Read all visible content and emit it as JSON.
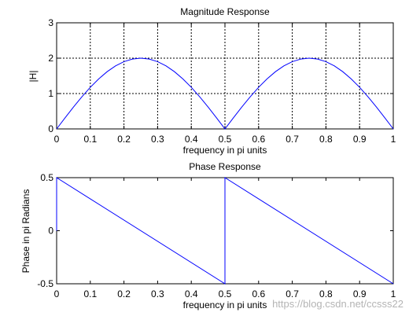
{
  "colors": {
    "line": "#0000ff",
    "axes": "#000000",
    "grid": "#000000",
    "background": "#ffffff",
    "watermark": "#b4b4b4"
  },
  "watermark": "https://blog.csdn.net/ccsss22",
  "chart_data": [
    {
      "type": "line",
      "title": "Magnitude Response",
      "xlabel": "frequency in pi units",
      "ylabel": "|H|",
      "xlim": [
        0,
        1
      ],
      "ylim": [
        0,
        3
      ],
      "grid": true,
      "x_ticks": [
        0,
        0.1,
        0.2,
        0.3,
        0.4,
        0.5,
        0.6,
        0.7,
        0.8,
        0.9,
        1
      ],
      "x_tick_labels": [
        "0",
        "0.1",
        "0.2",
        "0.3",
        "0.4",
        "0.5",
        "0.6",
        "0.7",
        "0.8",
        "0.9",
        "1"
      ],
      "y_ticks": [
        0,
        1,
        2,
        3
      ],
      "y_tick_labels": [
        "0",
        "1",
        "2",
        "3"
      ],
      "series": [
        {
          "x": [
            0,
            0.025,
            0.05,
            0.075,
            0.1,
            0.125,
            0.15,
            0.175,
            0.2,
            0.225,
            0.25,
            0.275,
            0.3,
            0.325,
            0.35,
            0.375,
            0.4,
            0.425,
            0.45,
            0.475,
            0.5,
            0.525,
            0.55,
            0.575,
            0.6,
            0.625,
            0.65,
            0.675,
            0.7,
            0.725,
            0.75,
            0.775,
            0.8,
            0.825,
            0.85,
            0.875,
            0.9,
            0.925,
            0.95,
            0.975,
            1
          ],
          "y": [
            0,
            0.313,
            0.618,
            0.908,
            1.176,
            1.414,
            1.618,
            1.782,
            1.902,
            1.975,
            2,
            1.975,
            1.902,
            1.782,
            1.618,
            1.414,
            1.176,
            0.908,
            0.618,
            0.313,
            0,
            0.313,
            0.618,
            0.908,
            1.176,
            1.414,
            1.618,
            1.782,
            1.902,
            1.975,
            2,
            1.975,
            1.902,
            1.782,
            1.618,
            1.414,
            1.176,
            0.908,
            0.618,
            0.313,
            0
          ]
        }
      ]
    },
    {
      "type": "line",
      "title": "Phase Response",
      "xlabel": "frequency in pi units",
      "ylabel": "Phase in pi Radians",
      "xlim": [
        0,
        1
      ],
      "ylim": [
        -0.5,
        0.5
      ],
      "grid": false,
      "x_ticks": [
        0,
        0.1,
        0.2,
        0.3,
        0.4,
        0.5,
        0.6,
        0.7,
        0.8,
        0.9,
        1
      ],
      "x_tick_labels": [
        "0",
        "0.1",
        "0.2",
        "0.3",
        "0.4",
        "0.5",
        "0.6",
        "0.7",
        "0.8",
        "0.9",
        "1"
      ],
      "y_ticks": [
        -0.5,
        0,
        0.5
      ],
      "y_tick_labels": [
        "-0.5",
        "0",
        "0.5"
      ],
      "series": [
        {
          "x": [
            0,
            0,
            0.5,
            0.5,
            1
          ],
          "y": [
            0,
            0.5,
            -0.5,
            0.5,
            -0.5
          ]
        }
      ]
    }
  ]
}
